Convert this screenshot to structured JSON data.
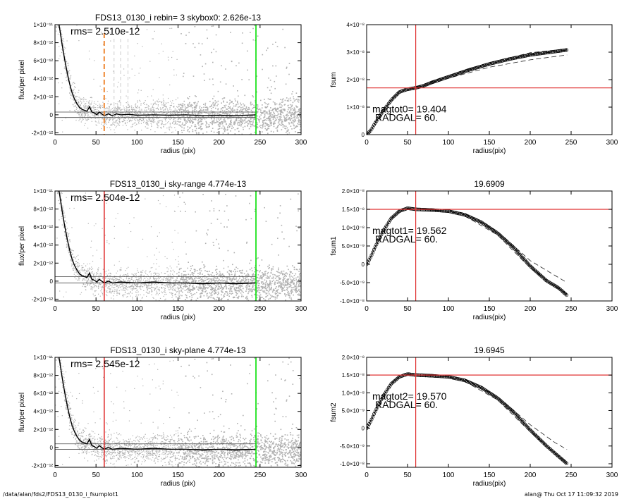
{
  "colors": {
    "scatter": "#b0b0b0",
    "profile": "#000000",
    "sky_line": "#00e000",
    "marker": "#e03030",
    "aperture": "#ee8833",
    "frame": "#000000"
  },
  "footer": {
    "left": "/data/alan/fds2/FDS13_0130_i_fsumplot1",
    "right": "alan@  Thu Oct 17 11:09:32 2019"
  },
  "chart_data": [
    {
      "id": "flux-profile-rebin",
      "type": "scatter",
      "title": "FDS13_0130_i rebin= 3    skybox0:  2.626e-13",
      "xlabel": "radius (pix)",
      "ylabel": "flux/per pixel",
      "xlim": [
        0,
        300
      ],
      "ylim": [
        -2.2e-12,
        1e-11
      ],
      "xticks": [
        0,
        50,
        100,
        150,
        200,
        250,
        300
      ],
      "yticks": [
        {
          "value": 1e-11,
          "label": "1×10⁻¹¹"
        },
        {
          "value": 8e-12,
          "label": "8×10⁻¹²"
        },
        {
          "value": 6e-12,
          "label": "6×10⁻¹²"
        },
        {
          "value": 4e-12,
          "label": "4×10⁻¹²"
        },
        {
          "value": 2e-12,
          "label": "2×10⁻¹²"
        },
        {
          "value": 0,
          "label": "0"
        },
        {
          "value": -2e-12,
          "label": "-2×10⁻¹²"
        }
      ],
      "annotation": "rms= 2.510e-12",
      "sky_radius": 245,
      "marker_radius": null,
      "aperture_radius": 60,
      "dashed_radii": [
        72,
        80,
        89
      ],
      "rms_band": [
        -3e-13,
        3e-13
      ],
      "profile": [
        [
          3,
          1.1e-11
        ],
        [
          6,
          9.4e-12
        ],
        [
          9,
          7.6e-12
        ],
        [
          12,
          6e-12
        ],
        [
          15,
          4.6e-12
        ],
        [
          18,
          3.4e-12
        ],
        [
          21,
          2.4e-12
        ],
        [
          24,
          1.7e-12
        ],
        [
          27,
          1.2e-12
        ],
        [
          30,
          8e-13
        ],
        [
          33,
          6e-13
        ],
        [
          36,
          5e-13
        ],
        [
          39,
          4e-13
        ],
        [
          42,
          9e-13
        ],
        [
          45,
          3e-13
        ],
        [
          48,
          2e-13
        ],
        [
          51,
          0
        ],
        [
          54,
          3e-13
        ],
        [
          57,
          1e-13
        ],
        [
          60,
          -1e-13
        ],
        [
          65,
          1e-13
        ],
        [
          70,
          -1e-13
        ],
        [
          75,
          1e-13
        ],
        [
          80,
          0
        ],
        [
          90,
          5e-14
        ],
        [
          100,
          -5e-14
        ],
        [
          120,
          0
        ],
        [
          140,
          -5e-14
        ],
        [
          160,
          0
        ],
        [
          180,
          -1e-13
        ],
        [
          200,
          -5e-14
        ],
        [
          220,
          -1e-13
        ],
        [
          245,
          0
        ]
      ]
    },
    {
      "id": "fsum-0",
      "type": "line",
      "title": "",
      "xlabel": "radius(pix)",
      "ylabel": "fsum",
      "xlim": [
        0,
        300
      ],
      "ylim": [
        0,
        4e-08
      ],
      "xticks": [
        0,
        50,
        100,
        150,
        200,
        250,
        300
      ],
      "yticks": [
        {
          "value": 4e-08,
          "label": "4×10⁻⁸"
        },
        {
          "value": 3e-08,
          "label": "3×10⁻⁸"
        },
        {
          "value": 2e-08,
          "label": "2×10⁻⁸"
        },
        {
          "value": 1e-08,
          "label": "1×10⁻⁸"
        },
        {
          "value": 0,
          "label": "0"
        }
      ],
      "annotations": [
        "magtot0=  19.404",
        "RADGAL=     60."
      ],
      "crosshair": {
        "x": 60,
        "y": 1.7e-08
      },
      "curve": [
        [
          0,
          0
        ],
        [
          5,
          1.5e-09
        ],
        [
          10,
          4e-09
        ],
        [
          20,
          8.5e-09
        ],
        [
          30,
          1.25e-08
        ],
        [
          40,
          1.55e-08
        ],
        [
          50,
          1.65e-08
        ],
        [
          60,
          1.7e-08
        ],
        [
          70,
          1.78e-08
        ],
        [
          80,
          1.9e-08
        ],
        [
          100,
          2.1e-08
        ],
        [
          125,
          2.35e-08
        ],
        [
          150,
          2.57e-08
        ],
        [
          175,
          2.75e-08
        ],
        [
          200,
          2.9e-08
        ],
        [
          225,
          3e-08
        ],
        [
          245,
          3.08e-08
        ]
      ],
      "upper": [
        [
          60,
          1.72e-08
        ],
        [
          100,
          2.15e-08
        ],
        [
          150,
          2.62e-08
        ],
        [
          200,
          2.98e-08
        ],
        [
          245,
          3.12e-08
        ]
      ],
      "lower": [
        [
          60,
          1.68e-08
        ],
        [
          100,
          2.05e-08
        ],
        [
          150,
          2.45e-08
        ],
        [
          200,
          2.72e-08
        ],
        [
          245,
          2.9e-08
        ]
      ]
    },
    {
      "id": "flux-profile-sky-range",
      "type": "scatter",
      "title": "FDS13_0130_i sky-range  4.774e-13",
      "xlabel": "radius (pix)",
      "ylabel": "flux/per pixel",
      "xlim": [
        0,
        300
      ],
      "ylim": [
        -2.2e-12,
        1e-11
      ],
      "xticks": [
        0,
        50,
        100,
        150,
        200,
        250,
        300
      ],
      "yticks": [
        {
          "value": 1e-11,
          "label": "1×10⁻¹¹"
        },
        {
          "value": 8e-12,
          "label": "8×10⁻¹²"
        },
        {
          "value": 6e-12,
          "label": "6×10⁻¹²"
        },
        {
          "value": 4e-12,
          "label": "4×10⁻¹²"
        },
        {
          "value": 2e-12,
          "label": "2×10⁻¹²"
        },
        {
          "value": 0,
          "label": "0"
        },
        {
          "value": -2e-12,
          "label": "-2×10⁻¹²"
        }
      ],
      "annotation": "rms= 2.504e-12",
      "sky_radius": 245,
      "marker_radius": 60,
      "aperture_radius": null,
      "dashed_radii": [],
      "rms_band": [
        -2e-13,
        5e-13
      ],
      "profile": [
        [
          3,
          1.1e-11
        ],
        [
          6,
          9.4e-12
        ],
        [
          9,
          7.6e-12
        ],
        [
          12,
          6e-12
        ],
        [
          15,
          4.6e-12
        ],
        [
          18,
          3.4e-12
        ],
        [
          21,
          2.4e-12
        ],
        [
          24,
          1.7e-12
        ],
        [
          27,
          1.2e-12
        ],
        [
          30,
          8e-13
        ],
        [
          33,
          6e-13
        ],
        [
          36,
          5e-13
        ],
        [
          39,
          4e-13
        ],
        [
          42,
          9e-13
        ],
        [
          45,
          2e-13
        ],
        [
          48,
          1e-13
        ],
        [
          51,
          -1e-13
        ],
        [
          54,
          2e-13
        ],
        [
          57,
          0
        ],
        [
          60,
          -2e-13
        ],
        [
          65,
          0
        ],
        [
          70,
          -2e-13
        ],
        [
          80,
          -1e-13
        ],
        [
          100,
          -2e-13
        ],
        [
          120,
          -1e-13
        ],
        [
          140,
          -2e-13
        ],
        [
          160,
          -2e-13
        ],
        [
          180,
          -3e-13
        ],
        [
          200,
          -2e-13
        ],
        [
          220,
          -3e-13
        ],
        [
          245,
          -2e-13
        ]
      ]
    },
    {
      "id": "fsum-1",
      "type": "line",
      "title": "19.6909",
      "xlabel": "radius(pix)",
      "ylabel": "fsum1",
      "xlim": [
        0,
        300
      ],
      "ylim": [
        -1e-08,
        2e-08
      ],
      "xticks": [
        0,
        50,
        100,
        150,
        200,
        250,
        300
      ],
      "yticks": [
        {
          "value": 2e-08,
          "label": "2.0×10⁻⁸"
        },
        {
          "value": 1.5e-08,
          "label": "1.5×10⁻⁸"
        },
        {
          "value": 1e-08,
          "label": "1.0×10⁻⁸"
        },
        {
          "value": 5e-09,
          "label": "5.0×10⁻⁹"
        },
        {
          "value": 0,
          "label": "0"
        },
        {
          "value": -5e-09,
          "label": "-5.0×10⁻⁹"
        },
        {
          "value": -1e-08,
          "label": "-1.0×10⁻⁸"
        }
      ],
      "annotations": [
        "magtot1=  19.562",
        "RADGAL=     60."
      ],
      "crosshair": {
        "x": 60,
        "y": 1.5e-08
      },
      "curve": [
        [
          0,
          0
        ],
        [
          5,
          2e-09
        ],
        [
          10,
          4.5e-09
        ],
        [
          20,
          9e-09
        ],
        [
          30,
          1.25e-08
        ],
        [
          40,
          1.45e-08
        ],
        [
          50,
          1.53e-08
        ],
        [
          60,
          1.5e-08
        ],
        [
          80,
          1.48e-08
        ],
        [
          100,
          1.45e-08
        ],
        [
          120,
          1.35e-08
        ],
        [
          140,
          1.15e-08
        ],
        [
          160,
          8.5e-09
        ],
        [
          180,
          4.5e-09
        ],
        [
          200,
          -5e-10
        ],
        [
          220,
          -4.5e-09
        ],
        [
          235,
          -6.5e-09
        ],
        [
          245,
          -8.5e-09
        ]
      ],
      "upper": [
        [
          120,
          1.38e-08
        ],
        [
          160,
          9e-09
        ],
        [
          200,
          1e-09
        ],
        [
          230,
          -3e-09
        ],
        [
          245,
          -5e-09
        ]
      ],
      "lower": [
        [
          120,
          1.32e-08
        ],
        [
          160,
          8e-09
        ],
        [
          200,
          -1e-09
        ],
        [
          230,
          -6e-09
        ],
        [
          245,
          -8e-09
        ]
      ]
    },
    {
      "id": "flux-profile-sky-plane",
      "type": "scatter",
      "title": "FDS13_0130_i sky-plane  4.774e-13",
      "xlabel": "radius (pix)",
      "ylabel": "flux/per pixel",
      "xlim": [
        0,
        300
      ],
      "ylim": [
        -2.2e-12,
        1e-11
      ],
      "xticks": [
        0,
        50,
        100,
        150,
        200,
        250,
        300
      ],
      "yticks": [
        {
          "value": 1e-11,
          "label": "1×10⁻¹¹"
        },
        {
          "value": 8e-12,
          "label": "8×10⁻¹²"
        },
        {
          "value": 6e-12,
          "label": "6×10⁻¹²"
        },
        {
          "value": 4e-12,
          "label": "4×10⁻¹²"
        },
        {
          "value": 2e-12,
          "label": "2×10⁻¹²"
        },
        {
          "value": 0,
          "label": "0"
        },
        {
          "value": -2e-12,
          "label": "-2×10⁻¹²"
        }
      ],
      "annotation": "rms= 2.545e-12",
      "sky_radius": 245,
      "marker_radius": 60,
      "aperture_radius": null,
      "dashed_radii": [],
      "rms_band": [
        -2e-13,
        4e-13
      ],
      "profile": [
        [
          3,
          1.1e-11
        ],
        [
          6,
          9.4e-12
        ],
        [
          9,
          7.6e-12
        ],
        [
          12,
          6e-12
        ],
        [
          15,
          4.6e-12
        ],
        [
          18,
          3.4e-12
        ],
        [
          21,
          2.4e-12
        ],
        [
          24,
          1.7e-12
        ],
        [
          27,
          1.2e-12
        ],
        [
          30,
          8e-13
        ],
        [
          33,
          6e-13
        ],
        [
          36,
          5e-13
        ],
        [
          39,
          4e-13
        ],
        [
          42,
          9e-13
        ],
        [
          45,
          2e-13
        ],
        [
          48,
          1e-13
        ],
        [
          51,
          -1e-13
        ],
        [
          54,
          2e-13
        ],
        [
          57,
          0
        ],
        [
          60,
          -2e-13
        ],
        [
          65,
          0
        ],
        [
          70,
          -2e-13
        ],
        [
          80,
          -1e-13
        ],
        [
          100,
          -2e-13
        ],
        [
          120,
          -1e-13
        ],
        [
          140,
          -2e-13
        ],
        [
          160,
          -2e-13
        ],
        [
          180,
          -3e-13
        ],
        [
          200,
          -2e-13
        ],
        [
          220,
          -3e-13
        ],
        [
          245,
          -2e-13
        ]
      ]
    },
    {
      "id": "fsum-2",
      "type": "line",
      "title": "19.6945",
      "xlabel": "radius(pix)",
      "ylabel": "fsum2",
      "xlim": [
        0,
        300
      ],
      "ylim": [
        -1.1e-08,
        2e-08
      ],
      "xticks": [
        0,
        50,
        100,
        150,
        200,
        250,
        300
      ],
      "yticks": [
        {
          "value": 2e-08,
          "label": "2.0×10⁻⁸"
        },
        {
          "value": 1.5e-08,
          "label": "1.5×10⁻⁸"
        },
        {
          "value": 1e-08,
          "label": "1.0×10⁻⁸"
        },
        {
          "value": 5e-09,
          "label": "5.0×10⁻⁹"
        },
        {
          "value": 0,
          "label": "0"
        },
        {
          "value": -5e-09,
          "label": "-5.0×10⁻⁹"
        },
        {
          "value": -1e-08,
          "label": "-1.0×10⁻⁸"
        }
      ],
      "annotations": [
        "magtot2=  19.570",
        "RADGAL=     60."
      ],
      "crosshair": {
        "x": 60,
        "y": 1.5e-08
      },
      "curve": [
        [
          0,
          0
        ],
        [
          5,
          2e-09
        ],
        [
          10,
          4.5e-09
        ],
        [
          20,
          9e-09
        ],
        [
          30,
          1.25e-08
        ],
        [
          40,
          1.45e-08
        ],
        [
          50,
          1.53e-08
        ],
        [
          60,
          1.5e-08
        ],
        [
          80,
          1.48e-08
        ],
        [
          100,
          1.45e-08
        ],
        [
          120,
          1.35e-08
        ],
        [
          140,
          1.15e-08
        ],
        [
          160,
          8.5e-09
        ],
        [
          180,
          4.5e-09
        ],
        [
          200,
          -5e-10
        ],
        [
          220,
          -5e-09
        ],
        [
          235,
          -8e-09
        ],
        [
          245,
          -1e-08
        ]
      ],
      "upper": [
        [
          120,
          1.38e-08
        ],
        [
          160,
          9e-09
        ],
        [
          200,
          1e-09
        ],
        [
          230,
          -4e-09
        ],
        [
          245,
          -6e-09
        ]
      ],
      "lower": [
        [
          120,
          1.32e-08
        ],
        [
          160,
          8e-09
        ],
        [
          200,
          -1e-09
        ],
        [
          230,
          -7e-09
        ],
        [
          245,
          -9.5e-09
        ]
      ]
    }
  ]
}
